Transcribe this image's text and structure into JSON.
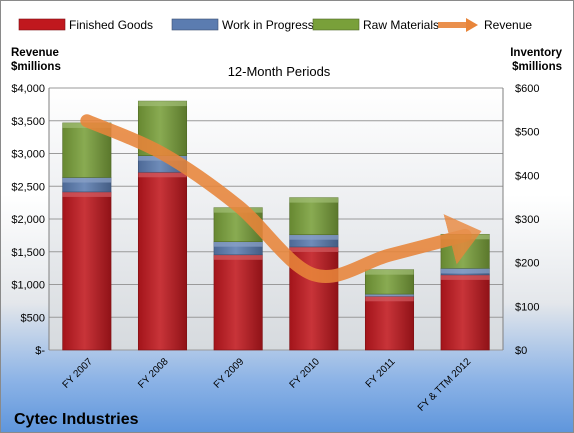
{
  "chart_data": {
    "type": "bar",
    "title": "12-Month Periods",
    "company": "Cytec Industries",
    "left_axis_label": [
      "Revenue",
      "$millions"
    ],
    "right_axis_label": [
      "Inventory",
      "$millions"
    ],
    "categories": [
      "FY 2007",
      "FY 2008",
      "FY 2009",
      "FY 2010",
      "FY 2011",
      "FY & TTM 2012"
    ],
    "left_ticks": [
      "$-",
      "$500",
      "$1,000",
      "$1,500",
      "$2,000",
      "$2,500",
      "$3,000",
      "$3,500",
      "$4,000"
    ],
    "right_ticks": [
      "$0",
      "$100",
      "$200",
      "$300",
      "$400",
      "$500",
      "$600"
    ],
    "left_ylim": [
      0,
      4000
    ],
    "right_ylim": [
      0,
      600
    ],
    "stacked": true,
    "legend_position": "top",
    "grid": true,
    "series": [
      {
        "name": "Finished Goods",
        "axis": "right",
        "kind": "bar",
        "color": "#c0181e",
        "values": [
          362,
          407,
          218,
          236,
          123,
          172
        ]
      },
      {
        "name": "Work in Progress",
        "axis": "right",
        "kind": "bar",
        "color": "#5b7cb0",
        "values": [
          33,
          38,
          30,
          28,
          5,
          15
        ]
      },
      {
        "name": "Raw Materials",
        "axis": "right",
        "kind": "bar",
        "color": "#79a03a",
        "values": [
          125,
          125,
          78,
          85,
          56,
          78
        ]
      },
      {
        "name": "Revenue",
        "axis": "left",
        "kind": "line",
        "color": "#e8853a",
        "values": [
          3500,
          3000,
          2200,
          1150,
          1450,
          1750
        ]
      }
    ]
  }
}
